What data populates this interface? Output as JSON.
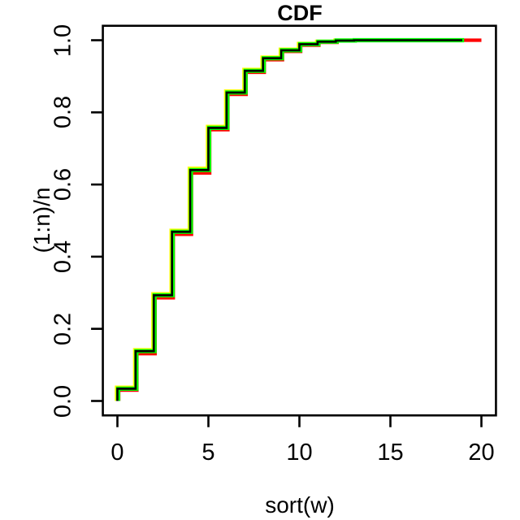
{
  "chart_data": {
    "type": "line",
    "subtype": "step-ecdf",
    "title": "CDF",
    "xlabel": "sort(w)",
    "ylabel": "(1:n)/n",
    "xlim": [
      0,
      20
    ],
    "ylim": [
      0,
      1
    ],
    "grid": false,
    "legend": null,
    "background": "#ffffff",
    "axis_color": "#000000",
    "x_ticks": [
      {
        "value": 0,
        "label": "0"
      },
      {
        "value": 5,
        "label": "5"
      },
      {
        "value": 10,
        "label": "10"
      },
      {
        "value": 15,
        "label": "15"
      },
      {
        "value": 20,
        "label": "20"
      }
    ],
    "y_ticks": [
      {
        "value": 0.0,
        "label": "0.0"
      },
      {
        "value": 0.2,
        "label": "0.2"
      },
      {
        "value": 0.4,
        "label": "0.4"
      },
      {
        "value": 0.6,
        "label": "0.6"
      },
      {
        "value": 0.8,
        "label": "0.8"
      },
      {
        "value": 1.0,
        "label": "1.0"
      }
    ],
    "step_x": [
      0,
      1,
      2,
      3,
      4,
      5,
      6,
      7,
      8,
      9,
      10,
      11,
      12,
      13
    ],
    "series": [
      {
        "name": "sample-yellow",
        "color": "#FFFF00",
        "lwd": 4.2,
        "dx": -0.05,
        "x_end": 18.85,
        "values": [
          0.038,
          0.142,
          0.297,
          0.473,
          0.645,
          0.761,
          0.859,
          0.919,
          0.953,
          0.975,
          0.991,
          0.997,
          1.0,
          1.0
        ]
      },
      {
        "name": "sample-red",
        "color": "#FF0000",
        "lwd": 4.2,
        "dx": 0.07,
        "x_end": 20.0,
        "values": [
          0.03,
          0.131,
          0.286,
          0.462,
          0.632,
          0.752,
          0.85,
          0.911,
          0.946,
          0.969,
          0.986,
          0.994,
          0.998,
          1.0
        ]
      },
      {
        "name": "sample-green",
        "color": "#00FF00",
        "lwd": 5.2,
        "dx": 0.04,
        "x_end": 19.05,
        "values": [
          0.034,
          0.138,
          0.293,
          0.469,
          0.64,
          0.757,
          0.855,
          0.915,
          0.95,
          0.972,
          0.989,
          0.996,
          0.999,
          1.0
        ]
      },
      {
        "name": "sample-black",
        "color": "#000000",
        "lwd": 2.6,
        "dx": 0.0,
        "x_end": 18.95,
        "values": [
          0.034,
          0.138,
          0.293,
          0.469,
          0.64,
          0.757,
          0.855,
          0.915,
          0.95,
          0.972,
          0.989,
          0.996,
          0.999,
          1.0
        ]
      }
    ]
  }
}
